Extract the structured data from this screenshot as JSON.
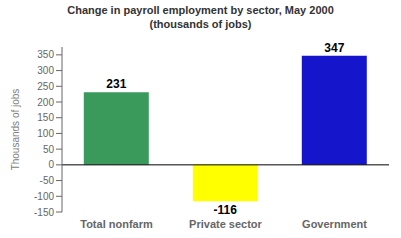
{
  "chart_data": {
    "type": "bar",
    "title": "Change in payroll employment by sector, May 2000",
    "subtitle": "(thousands of jobs)",
    "ylabel": "Thousands of jobs",
    "categories": [
      "Total nonfarm",
      "Private sector",
      "Government"
    ],
    "values": [
      231,
      -116,
      347
    ],
    "colors": [
      "#3a9a5c",
      "#ffff00",
      "#1515cc"
    ],
    "ylim": [
      -150,
      375
    ],
    "yticks": [
      -150,
      -100,
      -50,
      0,
      50,
      100,
      150,
      200,
      250,
      300,
      350
    ],
    "grid": false,
    "data_labels": true
  }
}
